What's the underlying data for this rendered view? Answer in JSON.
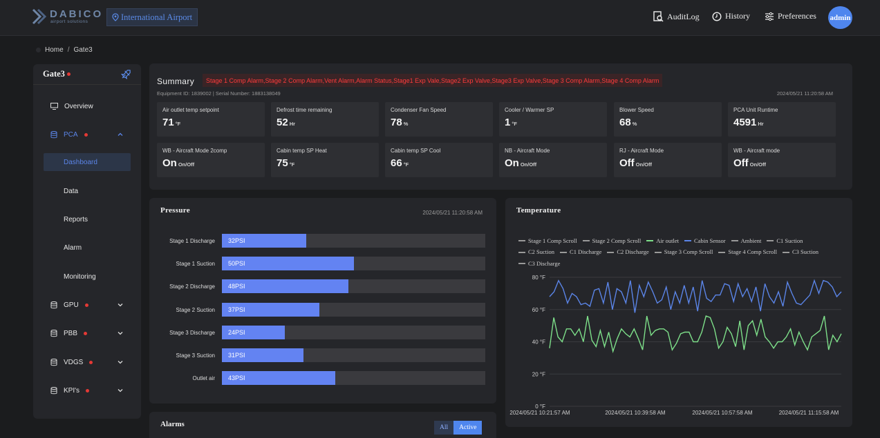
{
  "brand": {
    "name": "DABICO",
    "tagline": "airport solutions"
  },
  "location": {
    "label": "International Airport"
  },
  "topnav": {
    "auditlog": "AuditLog",
    "history": "History",
    "preferences": "Preferences",
    "user": "admin"
  },
  "breadcrumb": {
    "home": "Home",
    "separator": "/",
    "current": "Gate3"
  },
  "sidebar": {
    "title": "Gate3",
    "items": [
      {
        "label": "Overview"
      },
      {
        "label": "PCA"
      },
      {
        "label": "Dashboard"
      },
      {
        "label": "Data"
      },
      {
        "label": "Reports"
      },
      {
        "label": "Alarm"
      },
      {
        "label": "Monitoring"
      },
      {
        "label": "GPU"
      },
      {
        "label": "PBB"
      },
      {
        "label": "VDGS"
      },
      {
        "label": "KPI's"
      }
    ]
  },
  "summary": {
    "title": "Summary",
    "alarms": "Stage 1 Comp Alarm,Stage 2 Comp Alarm,Vent Alarm,Alarm Status,Stage1 Exp Vale,Stage2 Exp Valve,Stage3 Exp Valve,Stage 3 Comp Alarm,Stage 4 Comp Alarm",
    "equipment": "Equipment ID: 1839002 | Serial Number: 1883138049",
    "timestamp": "2024/05/21 11:20:58 AM",
    "metrics": [
      {
        "label": "Air outlet temp setpoint",
        "value": "71",
        "unit": "°F"
      },
      {
        "label": "Defrost time remaining",
        "value": "52",
        "unit": "Hr"
      },
      {
        "label": "Condenser Fan Speed",
        "value": "78",
        "unit": "%"
      },
      {
        "label": "Cooler / Warmer SP",
        "value": "1",
        "unit": "°F"
      },
      {
        "label": "Blower Speed",
        "value": "68",
        "unit": "%"
      },
      {
        "label": "PCA Unit Runtime",
        "value": "4591",
        "unit": "Hr"
      },
      {
        "label": "WB - Aircraft Mode 2comp",
        "value": "On",
        "unit": "On/Off"
      },
      {
        "label": "Cabin temp SP Heat",
        "value": "75",
        "unit": "°F"
      },
      {
        "label": "Cabin temp SP Cool",
        "value": "66",
        "unit": "°F"
      },
      {
        "label": "NB - Aircraft Mode",
        "value": "On",
        "unit": "On/Off"
      },
      {
        "label": "RJ - Aircraft Mode",
        "value": "Off",
        "unit": "On/Off"
      },
      {
        "label": "WB - Aircraft mode",
        "value": "Off",
        "unit": "On/Off"
      }
    ]
  },
  "pressure": {
    "title": "Pressure",
    "timestamp": "2024/05/21 11:20:58 AM",
    "max": 100,
    "bars": [
      {
        "label": "Stage 1 Discharge",
        "value": 32,
        "text": "32PSI"
      },
      {
        "label": "Stage 1 Suction",
        "value": 50,
        "text": "50PSI"
      },
      {
        "label": "Stage 2 Discharge",
        "value": 48,
        "text": "48PSI"
      },
      {
        "label": "Stage 2 Suction",
        "value": 37,
        "text": "37PSI"
      },
      {
        "label": "Stage 3 Discharge",
        "value": 24,
        "text": "24PSI"
      },
      {
        "label": "Stage 3 Suction",
        "value": 31,
        "text": "31PSI"
      },
      {
        "label": "Outlet air",
        "value": 43,
        "text": "43PSI"
      }
    ]
  },
  "chart_data": {
    "type": "line",
    "title": "Temperature",
    "legend": [
      "Stage 1 Comp Scroll",
      "Stage 2 Comp Scroll",
      "Air outlet",
      "Cabin  Sensor",
      "Ambient",
      "C1 Suction",
      "C2 Suction",
      "C1 Discharge",
      "C2 Discharge",
      "Stage 3 Comp Scroll",
      "Stage 4 Comp Scroll",
      "C3 Suction",
      "C3 Discharge"
    ],
    "legend_colors": [
      "#9a9a9a",
      "#9a9a9a",
      "#7ee08a",
      "#5b85e8",
      "#9a9a9a",
      "#9a9a9a",
      "#9a9a9a",
      "#9a9a9a",
      "#9a9a9a",
      "#9a9a9a",
      "#9a9a9a",
      "#9a9a9a",
      "#9a9a9a"
    ],
    "yticks": [
      "80 °F",
      "60 °F",
      "40 °F",
      "20 °F",
      "0 °F"
    ],
    "ylim": [
      0,
      80
    ],
    "xticks": [
      "2024/05/21 10:21:57 AM",
      "2024/05/21 10:39:58 AM",
      "2024/05/21 10:57:58 AM",
      "2024/05/21 11:15:58 AM"
    ],
    "series": [
      {
        "name": "Cabin  Sensor",
        "color": "#5b85e8",
        "values": [
          68,
          71,
          78,
          73,
          64,
          70,
          68,
          63,
          64,
          62,
          72,
          73,
          64,
          77,
          60,
          73,
          71,
          64,
          78,
          58,
          75,
          68,
          77,
          71,
          64,
          66,
          74,
          60,
          71,
          64,
          75,
          64,
          74,
          59,
          78,
          67,
          65,
          69,
          69,
          76,
          75,
          65,
          76,
          68,
          73,
          65,
          74,
          59,
          76,
          68,
          64,
          71,
          62,
          77,
          70,
          64,
          63,
          66,
          69,
          78,
          70,
          78,
          77,
          74,
          68,
          71
        ]
      },
      {
        "name": "Air outlet",
        "color": "#7ee08a",
        "values": [
          36,
          55,
          43,
          40,
          48,
          48,
          44,
          48,
          40,
          56,
          41,
          37,
          47,
          37,
          46,
          34,
          42,
          48,
          45,
          43,
          48,
          42,
          35,
          56,
          44,
          47,
          48,
          48,
          46,
          35,
          39,
          45,
          46,
          46,
          40,
          40,
          46,
          56,
          55,
          48,
          36,
          40,
          49,
          45,
          37,
          53,
          35,
          50,
          53,
          44,
          54,
          43,
          40,
          36,
          40,
          40,
          43,
          48,
          38,
          46,
          40,
          35,
          43,
          45,
          47,
          56,
          35,
          44,
          40,
          45
        ]
      }
    ]
  },
  "alarms": {
    "title": "Alarms",
    "filter_all": "All",
    "filter_active": "Active"
  }
}
